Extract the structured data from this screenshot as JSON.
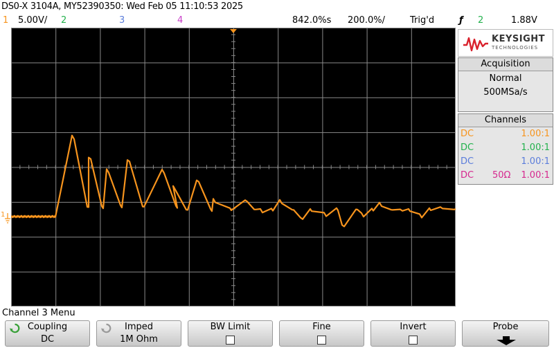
{
  "title": "DS0-X 3104A, MY52390350: Wed Feb 05 11:10:53 2025",
  "status": {
    "ch1_num": "1",
    "ch1_scale": "5.00V/",
    "ch2_num": "2",
    "ch3_num": "3",
    "ch4_num": "4",
    "delay": "842.0%s",
    "timebase": "200.0%/",
    "trig_state": "Trig'd",
    "trig_symbol": "ƒ",
    "trig_source": "2",
    "trig_level": "1.88V"
  },
  "logo": {
    "brand": "KEYSIGHT",
    "sub": "TECHNOLOGIES"
  },
  "acquisition": {
    "header": "Acquisition",
    "mode": "Normal",
    "rate": "500MSa/s"
  },
  "channels": {
    "header": "Channels",
    "rows": [
      {
        "coupling": "DC",
        "impedance": "",
        "probe": "1.00:1",
        "color": "#f7941d"
      },
      {
        "coupling": "DC",
        "impedance": "",
        "probe": "1.00:1",
        "color": "#22b14c"
      },
      {
        "coupling": "DC",
        "impedance": "",
        "probe": "1.00:1",
        "color": "#5b7ddb"
      },
      {
        "coupling": "DC",
        "impedance": "50Ω",
        "probe": "1.00:1",
        "color": "#d6288f"
      }
    ]
  },
  "colors": {
    "ch1": "#f7941d",
    "ch2": "#22b14c",
    "ch3": "#5b7ddb",
    "ch4": "#c83cc8",
    "grid": "#8a8a8a"
  },
  "ground_marker": "1",
  "menu_title": "Channel 3 Menu",
  "softkeys": [
    {
      "label": "Coupling",
      "value": "DC",
      "icon": "rotate-knob-icon"
    },
    {
      "label": "Imped",
      "value": "1M Ohm",
      "icon": "rotate-knob-icon"
    },
    {
      "label": "BW Limit",
      "value": ""
    },
    {
      "label": "Fine",
      "value": ""
    },
    {
      "label": "Invert",
      "value": ""
    },
    {
      "label": "Probe",
      "value": ""
    }
  ]
}
